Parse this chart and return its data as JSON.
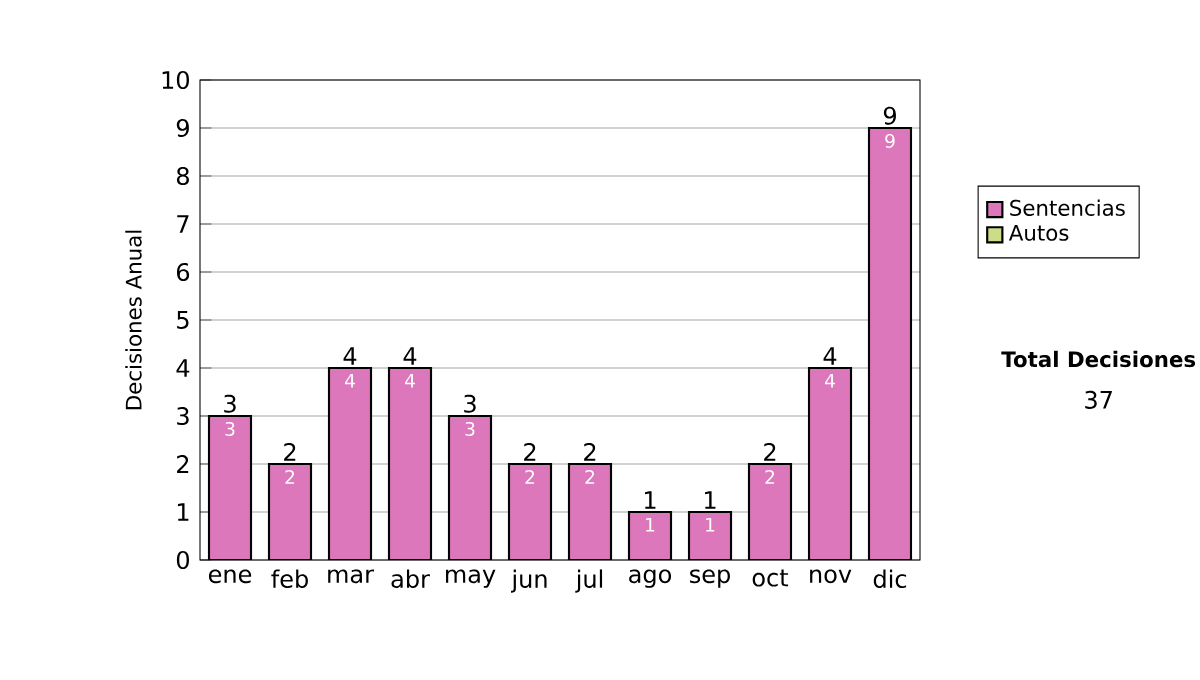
{
  "chart_data": {
    "type": "bar",
    "stacked": true,
    "ylabel": "Decisiones Anual",
    "categories": [
      "ene",
      "feb",
      "mar",
      "abr",
      "may",
      "jun",
      "jul",
      "ago",
      "sep",
      "oct",
      "nov",
      "dic"
    ],
    "series": [
      {
        "name": "Sentencias",
        "color": "#dd77bb",
        "values": [
          3,
          2,
          4,
          4,
          3,
          2,
          2,
          1,
          1,
          2,
          4,
          9
        ],
        "value_labels": [
          "3",
          "2",
          "4",
          "4",
          "3",
          "2",
          "2",
          "1",
          "1",
          "2",
          "4",
          "9"
        ]
      },
      {
        "name": "Autos",
        "color": "#ccdd88",
        "values": [
          0,
          0,
          0,
          0,
          0,
          0,
          0,
          0,
          0,
          0,
          0,
          0
        ]
      }
    ],
    "totals": [
      "3",
      "2",
      "4",
      "4",
      "3",
      "2",
      "2",
      "1",
      "1",
      "2",
      "4",
      "9"
    ],
    "ylim": [
      0,
      10
    ],
    "yticks": [
      0,
      1,
      2,
      3,
      4,
      5,
      6,
      7,
      8,
      9,
      10
    ],
    "grid": "y",
    "legend": "right",
    "annotations": [
      "Total Decisiones",
      "37"
    ]
  }
}
